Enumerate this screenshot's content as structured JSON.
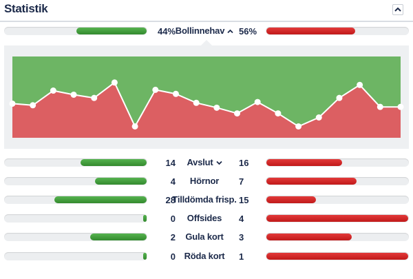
{
  "header": {
    "title": "Statistik",
    "collapse_icon": "chevron-up-icon"
  },
  "colors": {
    "home": "#3d9a36",
    "away": "#d42222",
    "home_area": "#6db564",
    "away_area": "#dc5f62"
  },
  "possession": {
    "label": "Bollinnehav",
    "home": "44%",
    "away": "56%",
    "home_value": 44,
    "away_value": 56
  },
  "chart_data": {
    "type": "area",
    "title": "",
    "xlabel": "",
    "ylabel": "",
    "ylim": [
      0,
      100
    ],
    "series": [
      {
        "values": [
          42,
          40,
          58,
          53,
          49,
          68,
          14,
          59,
          54,
          43,
          37,
          30,
          44,
          30,
          14,
          25,
          49,
          65,
          38,
          38
        ]
      }
    ]
  },
  "stats": [
    {
      "label": "Avslut",
      "home": "14",
      "away": "16",
      "home_value": 14,
      "away_value": 16,
      "chevron": true
    },
    {
      "label": "Hörnor",
      "home": "4",
      "away": "7",
      "home_value": 4,
      "away_value": 7,
      "chevron": false
    },
    {
      "label": "Tilldömda frisp.",
      "home": "28",
      "away": "15",
      "home_value": 28,
      "away_value": 15,
      "chevron": false
    },
    {
      "label": "Offsides",
      "home": "0",
      "away": "4",
      "home_value": 0,
      "away_value": 4,
      "chevron": false
    },
    {
      "label": "Gula kort",
      "home": "2",
      "away": "3",
      "home_value": 2,
      "away_value": 3,
      "chevron": false
    },
    {
      "label": "Röda kort",
      "home": "0",
      "away": "1",
      "home_value": 0,
      "away_value": 1,
      "chevron": false
    }
  ]
}
